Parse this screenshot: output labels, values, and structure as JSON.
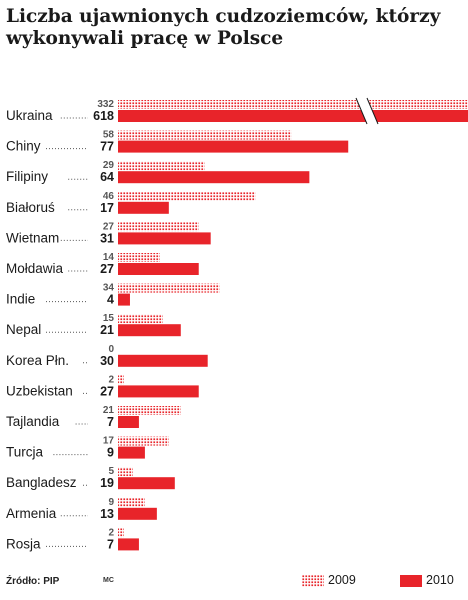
{
  "title": "Liczba ujawnionych cudzoziemców, którzy wykonywali pracę w Polsce",
  "source": "Źródło: PIP",
  "credit": "MC",
  "colors": {
    "accent": "#e8242a",
    "text": "#1a1a1a"
  },
  "legend": [
    {
      "label": "2009",
      "style": "dotted"
    },
    {
      "label": "2010",
      "style": "solid"
    }
  ],
  "chart_data": {
    "type": "bar",
    "orientation": "horizontal",
    "title": "Liczba ujawnionych cudzoziemców, którzy wykonywali pracę w Polsce",
    "categories": [
      "Ukraina",
      "Chiny",
      "Filipiny",
      "Białoruś",
      "Wietnam",
      "Mołdawia",
      "Indie",
      "Nepal",
      "Korea Płn.",
      "Uzbekistan",
      "Tajlandia",
      "Turcja",
      "Bangladesz",
      "Armenia",
      "Rosja"
    ],
    "series": [
      {
        "name": "2009",
        "values": [
          332,
          58,
          29,
          46,
          27,
          14,
          34,
          15,
          0,
          2,
          21,
          17,
          5,
          9,
          2
        ]
      },
      {
        "name": "2010",
        "values": [
          618,
          77,
          64,
          17,
          31,
          27,
          4,
          21,
          30,
          27,
          7,
          9,
          19,
          13,
          7
        ]
      }
    ],
    "axis_break": "Ukraina bars truncated",
    "grid": false,
    "legend_position": "bottom-right"
  }
}
